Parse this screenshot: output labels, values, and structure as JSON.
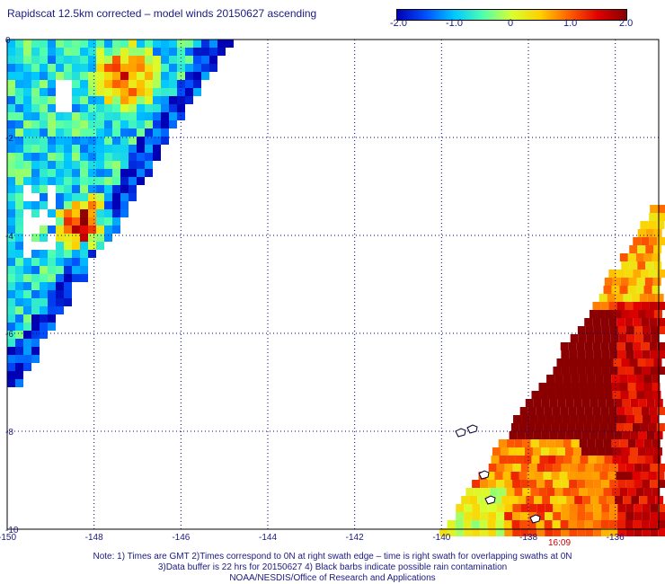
{
  "title": "Rapidscat 12.5km corrected – model winds 20150627 ascending",
  "colorbar": {
    "labels": [
      "-2.0",
      "-1.0",
      "0",
      "1.0",
      "2.0"
    ],
    "min": -2.0,
    "max": 2.0,
    "colors": [
      "#0000b4",
      "#0050ff",
      "#00c8ff",
      "#50ffb0",
      "#d8ff30",
      "#ffd000",
      "#ff6000",
      "#e00000",
      "#8a0000"
    ]
  },
  "axes": {
    "x_ticks": [
      "-150",
      "-148",
      "-146",
      "-144",
      "-142",
      "-140",
      "-138",
      "-136"
    ],
    "y_ticks": [
      "0",
      "-2",
      "-4",
      "-6",
      "-8",
      "-10"
    ],
    "lon_range": [
      -150,
      -135
    ],
    "lat_range": [
      -10,
      0
    ]
  },
  "time_label": "16:09",
  "notes": [
    "Note: 1) Times are GMT 2)Times correspond to 0N at right swath edge – time is right swath for overlapping swaths at 0N",
    "3)Data buffer is 22 hrs for 20150627 4) Black barbs indicate possible rain contamination",
    "NOAA/NESDIS/Office of Research and Applications"
  ]
}
